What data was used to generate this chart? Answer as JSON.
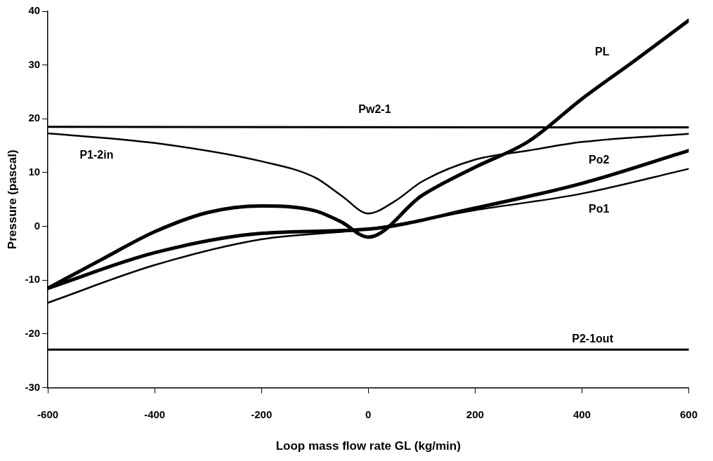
{
  "chart_data": {
    "type": "line",
    "xlabel": "Loop mass flow rate GL (kg/min)",
    "ylabel": "Pressure (pascal)",
    "xlim": [
      -600,
      600
    ],
    "xticks": [
      -600,
      -400,
      -200,
      0,
      200,
      400,
      600
    ],
    "ylim": [
      -30,
      40
    ],
    "yticks": [
      -30,
      -20,
      -10,
      0,
      10,
      20,
      30,
      40
    ],
    "grid": false,
    "legend": false,
    "marker": "none",
    "line_style": "solid",
    "series": [
      {
        "name": "PL",
        "color": "#000000",
        "x": [
          -600,
          -500,
          -400,
          -300,
          -200,
          -100,
          -50,
          0,
          100,
          200,
          300,
          400,
          500,
          600
        ],
        "values": [
          -11.5,
          -6.2,
          -1,
          2.6,
          3.8,
          2.9,
          0.8,
          -2,
          5.7,
          11,
          15.8,
          23.7,
          30.9,
          38.3
        ]
      },
      {
        "name": "Pw2-1",
        "color": "#000000",
        "x": [
          -600,
          600
        ],
        "values": [
          18.5,
          18.4
        ]
      },
      {
        "name": "P1-2in",
        "color": "#000000",
        "x": [
          -600,
          -400,
          -200,
          -100,
          -50,
          0,
          50,
          100,
          200,
          300,
          400,
          600
        ],
        "values": [
          17.3,
          15.5,
          12.1,
          9.1,
          5.7,
          2.4,
          4.7,
          8.3,
          12.4,
          14.1,
          15.7,
          17.2
        ]
      },
      {
        "name": "Po2",
        "color": "#000000",
        "x": [
          -600,
          -400,
          -200,
          0,
          200,
          400,
          600
        ],
        "values": [
          -11.5,
          -4.9,
          -1.3,
          -0.5,
          3.4,
          8,
          14.1
        ]
      },
      {
        "name": "Po1",
        "color": "#000000",
        "x": [
          -600,
          -400,
          -200,
          0,
          200,
          400,
          600
        ],
        "values": [
          -14.2,
          -7.2,
          -2.4,
          -0.5,
          3,
          6.1,
          10.7
        ]
      },
      {
        "name": "P2-1out",
        "color": "#000000",
        "x": [
          -600,
          600
        ],
        "values": [
          -22.9,
          -22.9
        ]
      }
    ]
  }
}
